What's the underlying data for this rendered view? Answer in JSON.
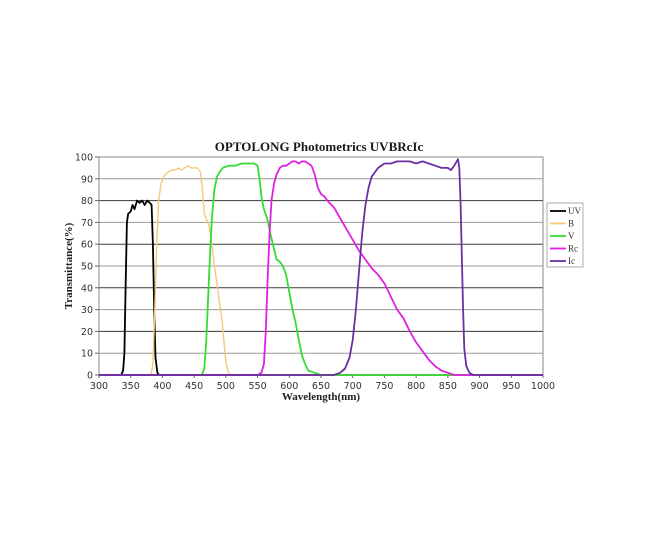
{
  "chart_data": {
    "type": "line",
    "title": "OPTOLONG Photometrics UVBRcIc",
    "xlabel": "Wavelength(nm)",
    "ylabel": "Transmittance(%)",
    "xlim": [
      300,
      1000
    ],
    "ylim": [
      0,
      100
    ],
    "xticks": [
      300,
      350,
      400,
      450,
      500,
      550,
      600,
      650,
      700,
      750,
      800,
      850,
      900,
      950,
      1000
    ],
    "yticks": [
      0,
      10,
      20,
      30,
      40,
      50,
      60,
      70,
      80,
      90,
      100
    ],
    "grid": "horizontal",
    "legend_position": "right",
    "series": [
      {
        "name": "UV",
        "color": "#000000",
        "points": [
          [
            300,
            0
          ],
          [
            335,
            0
          ],
          [
            338,
            2
          ],
          [
            340,
            10
          ],
          [
            342,
            40
          ],
          [
            344,
            70
          ],
          [
            346,
            74
          ],
          [
            350,
            75
          ],
          [
            353,
            78
          ],
          [
            356,
            76
          ],
          [
            360,
            80
          ],
          [
            364,
            79
          ],
          [
            368,
            80
          ],
          [
            372,
            78
          ],
          [
            376,
            80
          ],
          [
            380,
            79
          ],
          [
            383,
            78
          ],
          [
            385,
            60
          ],
          [
            387,
            30
          ],
          [
            389,
            8
          ],
          [
            392,
            1
          ],
          [
            395,
            0
          ],
          [
            1000,
            0
          ]
        ]
      },
      {
        "name": "B",
        "color": "#F5C97A",
        "points": [
          [
            300,
            0
          ],
          [
            382,
            0
          ],
          [
            385,
            5
          ],
          [
            388,
            30
          ],
          [
            391,
            60
          ],
          [
            394,
            80
          ],
          [
            398,
            88
          ],
          [
            402,
            91
          ],
          [
            408,
            93
          ],
          [
            415,
            94
          ],
          [
            420,
            94
          ],
          [
            425,
            95
          ],
          [
            430,
            94
          ],
          [
            435,
            95
          ],
          [
            440,
            96
          ],
          [
            445,
            95
          ],
          [
            450,
            95
          ],
          [
            455,
            95
          ],
          [
            460,
            93
          ],
          [
            463,
            85
          ],
          [
            466,
            74
          ],
          [
            470,
            71
          ],
          [
            474,
            68
          ],
          [
            478,
            60
          ],
          [
            482,
            50
          ],
          [
            486,
            42
          ],
          [
            490,
            33
          ],
          [
            494,
            25
          ],
          [
            497,
            15
          ],
          [
            500,
            6
          ],
          [
            503,
            2
          ],
          [
            507,
            0
          ],
          [
            1000,
            0
          ]
        ]
      },
      {
        "name": "V",
        "color": "#33DD33",
        "points": [
          [
            300,
            0
          ],
          [
            462,
            0
          ],
          [
            466,
            3
          ],
          [
            469,
            15
          ],
          [
            472,
            35
          ],
          [
            475,
            55
          ],
          [
            478,
            72
          ],
          [
            482,
            85
          ],
          [
            486,
            91
          ],
          [
            490,
            93
          ],
          [
            495,
            95
          ],
          [
            505,
            96
          ],
          [
            515,
            96
          ],
          [
            525,
            97
          ],
          [
            535,
            97
          ],
          [
            545,
            97
          ],
          [
            550,
            96
          ],
          [
            553,
            90
          ],
          [
            556,
            82
          ],
          [
            560,
            76
          ],
          [
            565,
            72
          ],
          [
            570,
            65
          ],
          [
            575,
            59
          ],
          [
            580,
            53
          ],
          [
            585,
            52
          ],
          [
            590,
            50
          ],
          [
            595,
            46
          ],
          [
            600,
            38
          ],
          [
            605,
            30
          ],
          [
            610,
            24
          ],
          [
            615,
            16
          ],
          [
            620,
            9
          ],
          [
            625,
            5
          ],
          [
            630,
            2
          ],
          [
            640,
            1
          ],
          [
            650,
            0
          ],
          [
            1000,
            0
          ]
        ]
      },
      {
        "name": "Rc",
        "color": "#E020E0",
        "points": [
          [
            300,
            0
          ],
          [
            550,
            0
          ],
          [
            556,
            1
          ],
          [
            560,
            5
          ],
          [
            563,
            20
          ],
          [
            566,
            45
          ],
          [
            569,
            65
          ],
          [
            572,
            80
          ],
          [
            576,
            88
          ],
          [
            580,
            92
          ],
          [
            585,
            95
          ],
          [
            590,
            96
          ],
          [
            595,
            96
          ],
          [
            600,
            97
          ],
          [
            605,
            98
          ],
          [
            610,
            98
          ],
          [
            615,
            97
          ],
          [
            620,
            98
          ],
          [
            625,
            98
          ],
          [
            630,
            97
          ],
          [
            635,
            96
          ],
          [
            640,
            92
          ],
          [
            645,
            86
          ],
          [
            650,
            83
          ],
          [
            655,
            82
          ],
          [
            660,
            80
          ],
          [
            670,
            77
          ],
          [
            680,
            72
          ],
          [
            690,
            67
          ],
          [
            700,
            62
          ],
          [
            710,
            57
          ],
          [
            720,
            53
          ],
          [
            730,
            49
          ],
          [
            740,
            46
          ],
          [
            750,
            42
          ],
          [
            760,
            36
          ],
          [
            770,
            30
          ],
          [
            780,
            26
          ],
          [
            790,
            20
          ],
          [
            800,
            15
          ],
          [
            810,
            11
          ],
          [
            820,
            7
          ],
          [
            830,
            4
          ],
          [
            840,
            2
          ],
          [
            850,
            1
          ],
          [
            860,
            0
          ],
          [
            1000,
            0
          ]
        ]
      },
      {
        "name": "Ic",
        "color": "#6A2FA0",
        "points": [
          [
            300,
            0
          ],
          [
            670,
            0
          ],
          [
            680,
            1
          ],
          [
            688,
            3
          ],
          [
            695,
            8
          ],
          [
            700,
            16
          ],
          [
            705,
            30
          ],
          [
            710,
            48
          ],
          [
            715,
            65
          ],
          [
            720,
            78
          ],
          [
            725,
            86
          ],
          [
            730,
            91
          ],
          [
            740,
            95
          ],
          [
            750,
            97
          ],
          [
            760,
            97
          ],
          [
            770,
            98
          ],
          [
            780,
            98
          ],
          [
            790,
            98
          ],
          [
            800,
            97
          ],
          [
            810,
            98
          ],
          [
            820,
            97
          ],
          [
            830,
            96
          ],
          [
            840,
            95
          ],
          [
            850,
            95
          ],
          [
            855,
            94
          ],
          [
            860,
            96
          ],
          [
            864,
            98
          ],
          [
            866,
            99
          ],
          [
            868,
            95
          ],
          [
            870,
            80
          ],
          [
            872,
            55
          ],
          [
            874,
            30
          ],
          [
            876,
            12
          ],
          [
            879,
            4
          ],
          [
            884,
            1
          ],
          [
            890,
            0
          ],
          [
            1000,
            0
          ]
        ]
      }
    ]
  }
}
